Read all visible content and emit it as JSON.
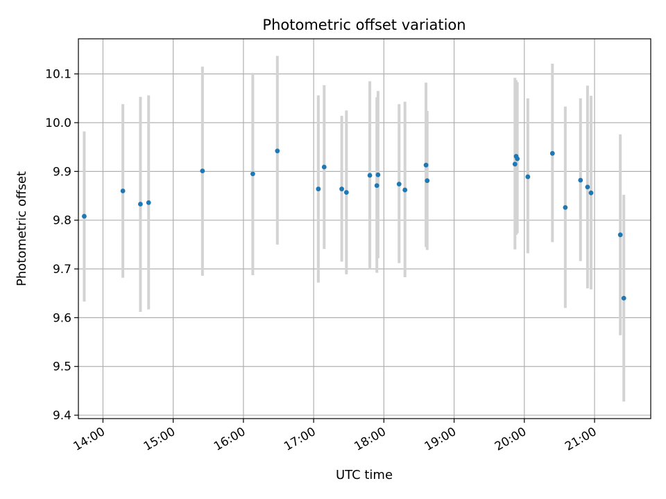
{
  "chart_data": {
    "type": "scatter",
    "title": "Photometric offset variation",
    "xlabel": "UTC time",
    "ylabel": "Photometric offset",
    "x_tick_labels": [
      "14:00",
      "15:00",
      "16:00",
      "17:00",
      "18:00",
      "19:00",
      "20:00",
      "21:00"
    ],
    "y_tick_labels": [
      "9.4",
      "9.5",
      "9.6",
      "9.7",
      "9.8",
      "9.9",
      "10.0",
      "10.1"
    ],
    "xlim": [
      "13:39",
      "21:48"
    ],
    "ylim": [
      9.393,
      10.172
    ],
    "grid": true,
    "colors": {
      "point": "#1f77b4",
      "errorbar": "#d3d3d3",
      "grid": "#b0b0b0"
    },
    "points": [
      {
        "x": "13:44",
        "y": 9.808,
        "ylow": 9.633,
        "yhigh": 9.982
      },
      {
        "x": "14:17",
        "y": 9.86,
        "ylow": 9.682,
        "yhigh": 10.038
      },
      {
        "x": "14:32",
        "y": 9.833,
        "ylow": 9.612,
        "yhigh": 10.053
      },
      {
        "x": "14:39",
        "y": 9.836,
        "ylow": 9.617,
        "yhigh": 10.056
      },
      {
        "x": "15:25",
        "y": 9.901,
        "ylow": 9.686,
        "yhigh": 10.115
      },
      {
        "x": "16:08",
        "y": 9.895,
        "ylow": 9.687,
        "yhigh": 10.102
      },
      {
        "x": "16:29",
        "y": 9.942,
        "ylow": 9.75,
        "yhigh": 10.137
      },
      {
        "x": "17:04",
        "y": 9.864,
        "ylow": 9.672,
        "yhigh": 10.056
      },
      {
        "x": "17:09",
        "y": 9.909,
        "ylow": 9.741,
        "yhigh": 10.077
      },
      {
        "x": "17:24",
        "y": 9.864,
        "ylow": 9.715,
        "yhigh": 10.014
      },
      {
        "x": "17:28",
        "y": 9.857,
        "ylow": 9.689,
        "yhigh": 10.025
      },
      {
        "x": "17:48",
        "y": 9.892,
        "ylow": 9.7,
        "yhigh": 10.085
      },
      {
        "x": "17:54",
        "y": 9.871,
        "ylow": 9.692,
        "yhigh": 10.052
      },
      {
        "x": "17:55",
        "y": 9.893,
        "ylow": 9.722,
        "yhigh": 10.065
      },
      {
        "x": "18:13",
        "y": 9.874,
        "ylow": 9.712,
        "yhigh": 10.038
      },
      {
        "x": "18:18",
        "y": 9.862,
        "ylow": 9.683,
        "yhigh": 10.043
      },
      {
        "x": "18:36",
        "y": 9.913,
        "ylow": 9.745,
        "yhigh": 10.082
      },
      {
        "x": "18:37",
        "y": 9.881,
        "ylow": 9.739,
        "yhigh": 10.024
      },
      {
        "x": "19:52",
        "y": 9.915,
        "ylow": 9.74,
        "yhigh": 10.092
      },
      {
        "x": "19:53",
        "y": 9.931,
        "ylow": 9.77,
        "yhigh": 10.087
      },
      {
        "x": "19:54",
        "y": 9.926,
        "ylow": 9.773,
        "yhigh": 10.083
      },
      {
        "x": "20:03",
        "y": 9.889,
        "ylow": 9.732,
        "yhigh": 10.05
      },
      {
        "x": "20:24",
        "y": 9.937,
        "ylow": 9.755,
        "yhigh": 10.121
      },
      {
        "x": "20:35",
        "y": 9.826,
        "ylow": 9.62,
        "yhigh": 10.033
      },
      {
        "x": "20:48",
        "y": 9.882,
        "ylow": 9.716,
        "yhigh": 10.05
      },
      {
        "x": "20:54",
        "y": 9.868,
        "ylow": 9.66,
        "yhigh": 10.076
      },
      {
        "x": "20:57",
        "y": 9.856,
        "ylow": 9.658,
        "yhigh": 10.055
      },
      {
        "x": "21:22",
        "y": 9.77,
        "ylow": 9.564,
        "yhigh": 9.976
      },
      {
        "x": "21:25",
        "y": 9.64,
        "ylow": 9.428,
        "yhigh": 9.852
      }
    ]
  }
}
